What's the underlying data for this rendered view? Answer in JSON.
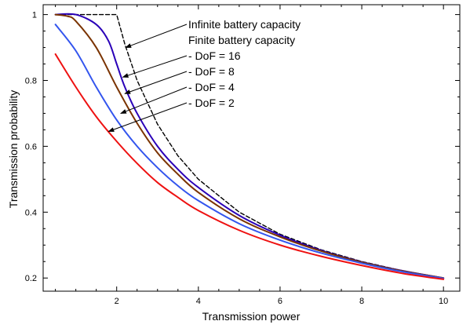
{
  "chart_data": {
    "type": "line",
    "title": "",
    "xlabel": "Transmission power",
    "ylabel": "Transmission probability",
    "xlim": [
      0.2,
      10.4
    ],
    "ylim": [
      0.16,
      1.03
    ],
    "xticks": [
      2,
      4,
      6,
      8,
      10
    ],
    "xtick_labels": [
      "2",
      "4",
      "6",
      "8",
      "10"
    ],
    "yticks": [
      0.2,
      0.4,
      0.6,
      0.8,
      1
    ],
    "ytick_labels": [
      "0.2",
      "0.4",
      "0.6",
      "0.8",
      "1"
    ],
    "grid": false,
    "series": [
      {
        "name": "Infinite battery capacity",
        "color": "#000000",
        "dash": "dashed",
        "x": [
          0.5,
          1.0,
          1.5,
          2.0,
          2.2,
          2.5,
          3.0,
          3.5,
          4.0,
          5.0,
          6.0,
          7.0,
          8.0,
          9.0,
          10.0
        ],
        "y": [
          1.0,
          1.0,
          1.0,
          1.0,
          0.91,
          0.8,
          0.667,
          0.571,
          0.5,
          0.4,
          0.333,
          0.286,
          0.25,
          0.222,
          0.2
        ]
      },
      {
        "name": "- DoF = 16",
        "color": "#2a00b8",
        "dash": "solid",
        "x": [
          0.5,
          1.0,
          1.5,
          1.8,
          2.0,
          2.2,
          2.5,
          3.0,
          3.5,
          4.0,
          5.0,
          6.0,
          7.0,
          8.0,
          9.0,
          10.0
        ],
        "y": [
          1.0,
          1.0,
          0.97,
          0.92,
          0.85,
          0.78,
          0.7,
          0.6,
          0.53,
          0.475,
          0.39,
          0.33,
          0.284,
          0.249,
          0.222,
          0.2
        ]
      },
      {
        "name": "- DoF = 8",
        "color": "#7a3300",
        "dash": "solid",
        "x": [
          0.5,
          0.8,
          1.0,
          1.5,
          2.0,
          2.5,
          3.0,
          3.5,
          4.0,
          5.0,
          6.0,
          7.0,
          8.0,
          9.0,
          10.0
        ],
        "y": [
          1.0,
          0.995,
          0.98,
          0.9,
          0.78,
          0.67,
          0.58,
          0.515,
          0.46,
          0.38,
          0.325,
          0.282,
          0.248,
          0.221,
          0.2
        ]
      },
      {
        "name": "- DoF = 4",
        "color": "#3355ee",
        "dash": "solid",
        "x": [
          0.5,
          1.0,
          1.5,
          2.0,
          2.5,
          3.0,
          3.5,
          4.0,
          5.0,
          6.0,
          7.0,
          8.0,
          9.0,
          10.0
        ],
        "y": [
          0.97,
          0.89,
          0.78,
          0.68,
          0.6,
          0.535,
          0.48,
          0.435,
          0.365,
          0.315,
          0.276,
          0.245,
          0.219,
          0.199
        ]
      },
      {
        "name": "- DoF = 2",
        "color": "#ee1111",
        "dash": "solid",
        "x": [
          0.5,
          1.0,
          1.5,
          2.0,
          2.5,
          3.0,
          3.5,
          4.0,
          5.0,
          6.0,
          7.0,
          8.0,
          9.0,
          10.0
        ],
        "y": [
          0.88,
          0.78,
          0.69,
          0.615,
          0.548,
          0.49,
          0.445,
          0.405,
          0.345,
          0.3,
          0.266,
          0.238,
          0.214,
          0.196
        ]
      }
    ],
    "annotations": [
      {
        "text": "Infinite battery capacity",
        "arrow_to": [
          2.22,
          0.9
        ]
      },
      {
        "text": "Finite battery capacity",
        "arrow_to": null
      },
      {
        "text": "- DoF = 16",
        "arrow_to": [
          2.15,
          0.81
        ]
      },
      {
        "text": "- DoF = 8",
        "arrow_to": [
          2.2,
          0.76
        ]
      },
      {
        "text": "- DoF = 4",
        "arrow_to": [
          2.1,
          0.7
        ]
      },
      {
        "text": "- DoF = 2",
        "arrow_to": [
          1.8,
          0.645
        ]
      }
    ]
  }
}
